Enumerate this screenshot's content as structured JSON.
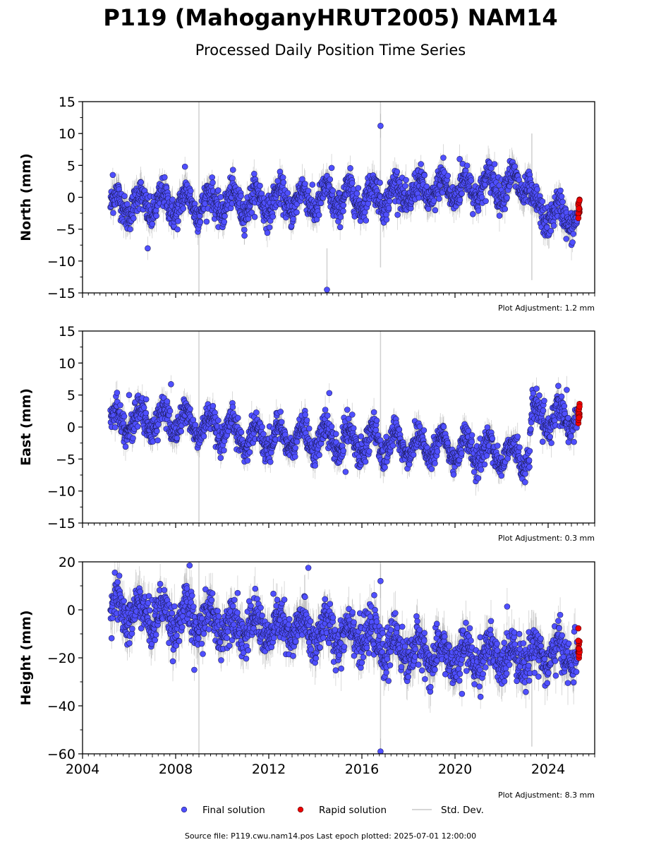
{
  "title": "P119 (MahoganyHRUT2005) NAM14",
  "subtitle": "Processed Daily Position Time Series",
  "source_line": "Source file: P119.cwu.nam14.pos  Last epoch plotted: 2025-07-01 12:00:00",
  "legend": [
    {
      "label": "Final solution",
      "color": "#4f4fff",
      "edge": "#1a1a66",
      "kind": "marker"
    },
    {
      "label": "Rapid solution",
      "color": "#ee0000",
      "edge": "#550000",
      "kind": "marker"
    },
    {
      "label": "Std. Dev.",
      "color": "#c8c8c8",
      "kind": "line"
    }
  ],
  "chart_data": [
    {
      "type": "scatter",
      "name": "north",
      "ylabel": "North (mm)",
      "ylim": [
        -15,
        15
      ],
      "yticks": [
        15,
        10,
        5,
        0,
        -5,
        -10,
        -15
      ],
      "ytick_labels": [
        "15",
        "10",
        "5",
        "0",
        "−5",
        "−10",
        "−15"
      ],
      "xlim": [
        2004,
        2026
      ],
      "adjustment": "Plot Adjustment: 1.2 mm",
      "final_range": [
        2005.2,
        2025.25
      ],
      "rapid_range": [
        2025.25,
        2025.5
      ],
      "trend": [
        [
          2005.2,
          -1.2
        ],
        [
          2009.0,
          -1.0
        ],
        [
          2013.0,
          -0.5
        ],
        [
          2016.0,
          0.0
        ],
        [
          2019.0,
          1.0
        ],
        [
          2023.2,
          2.2
        ],
        [
          2023.3,
          -2.0
        ],
        [
          2025.5,
          -3.5
        ]
      ],
      "seasonal_amp": 1.8,
      "noise": 1.2,
      "outliers": [
        [
          2005.3,
          3.5
        ],
        [
          2006.8,
          -8.0
        ],
        [
          2008.4,
          4.8
        ],
        [
          2014.5,
          -14.5
        ],
        [
          2014.7,
          4.6
        ],
        [
          2016.8,
          11.2
        ],
        [
          2019.5,
          6.2
        ],
        [
          2020.2,
          6.0
        ],
        [
          2021.7,
          5.2
        ]
      ],
      "spikes": [
        [
          2009.0,
          -15,
          15
        ],
        [
          2014.5,
          -15,
          -8
        ],
        [
          2016.8,
          -11,
          15
        ],
        [
          2023.3,
          -13,
          10
        ]
      ]
    },
    {
      "type": "scatter",
      "name": "east",
      "ylabel": "East (mm)",
      "ylim": [
        -15,
        15
      ],
      "yticks": [
        15,
        10,
        5,
        0,
        -5,
        -10,
        -15
      ],
      "ytick_labels": [
        "15",
        "10",
        "5",
        "0",
        "−5",
        "−10",
        "−15"
      ],
      "xlim": [
        2004,
        2026
      ],
      "adjustment": "Plot Adjustment: 0.3 mm",
      "final_range": [
        2005.2,
        2025.25
      ],
      "rapid_range": [
        2025.25,
        2025.5
      ],
      "trend": [
        [
          2005.2,
          1.0
        ],
        [
          2008.0,
          1.0
        ],
        [
          2011.0,
          -1.5
        ],
        [
          2015.0,
          -2.0
        ],
        [
          2019.0,
          -3.0
        ],
        [
          2023.2,
          -4.5
        ],
        [
          2023.3,
          1.5
        ],
        [
          2025.5,
          1.0
        ]
      ],
      "seasonal_amp": 2.0,
      "noise": 1.1,
      "outliers": [
        [
          2006.0,
          5.0
        ],
        [
          2007.8,
          6.7
        ],
        [
          2014.6,
          5.3
        ],
        [
          2015.3,
          -7.0
        ],
        [
          2021.0,
          -8.0
        ],
        [
          2023.5,
          6.0
        ],
        [
          2024.8,
          5.8
        ]
      ],
      "spikes": [
        [
          2009.0,
          -15,
          15
        ],
        [
          2016.8,
          -8,
          15
        ]
      ]
    },
    {
      "type": "scatter",
      "name": "height",
      "ylabel": "Height (mm)",
      "ylim": [
        -60,
        20
      ],
      "yticks": [
        20,
        0,
        -20,
        -40,
        -60
      ],
      "ytick_labels": [
        "20",
        "0",
        "−20",
        "−40",
        "−60"
      ],
      "xlim": [
        2004,
        2026
      ],
      "xticks": [
        2004,
        2008,
        2012,
        2016,
        2020,
        2024
      ],
      "xtick_labels": [
        "2004",
        "2008",
        "2012",
        "2016",
        "2020",
        "2024"
      ],
      "adjustment": "Plot Adjustment: 8.3 mm",
      "final_range": [
        2005.2,
        2025.25
      ],
      "rapid_range": [
        2025.25,
        2025.5
      ],
      "trend": [
        [
          2005.2,
          0.0
        ],
        [
          2008.0,
          -3.0
        ],
        [
          2012.0,
          -8.0
        ],
        [
          2016.0,
          -10.0
        ],
        [
          2017.0,
          -15.0
        ],
        [
          2020.0,
          -20.0
        ],
        [
          2025.5,
          -18.0
        ]
      ],
      "seasonal_amp": 5.0,
      "noise": 4.5,
      "outliers": [
        [
          2008.6,
          18.5
        ],
        [
          2013.7,
          17.5
        ],
        [
          2016.8,
          12.0
        ],
        [
          2016.8,
          -59.0
        ],
        [
          2008.8,
          -25.0
        ],
        [
          2020.3,
          -35.0
        ]
      ],
      "spikes": [
        [
          2009.0,
          -60,
          20
        ],
        [
          2016.8,
          -60,
          20
        ],
        [
          2023.3,
          -57,
          0
        ]
      ]
    }
  ]
}
